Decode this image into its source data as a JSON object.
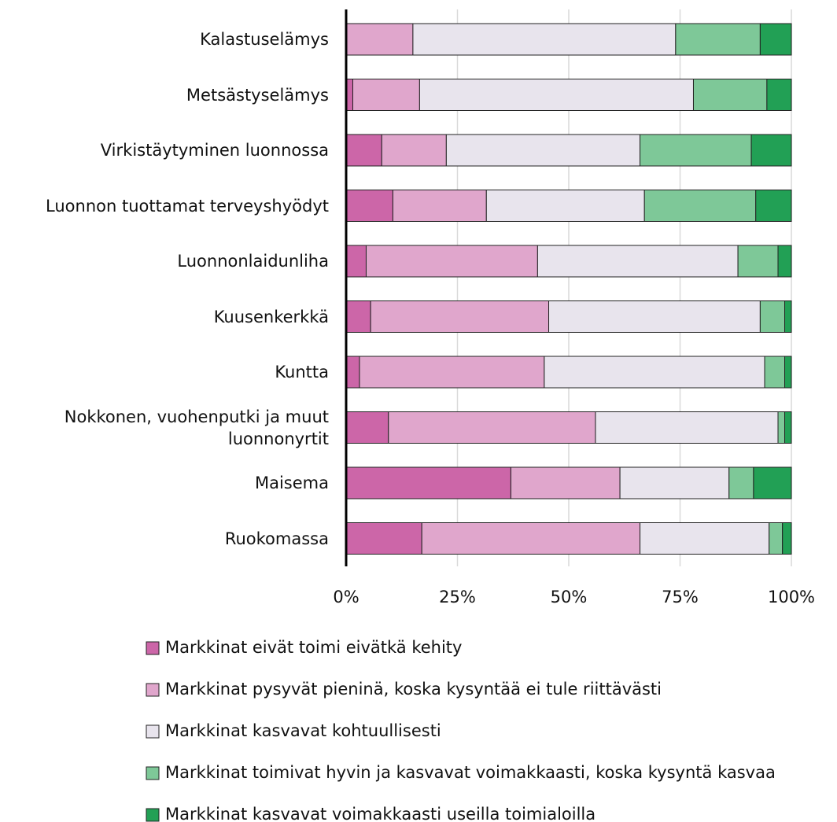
{
  "chart_data": {
    "type": "stacked-barh",
    "categories": [
      "Kalastuselämys",
      "Metsästyselämys",
      "Virkistäytyminen luonnossa",
      "Luonnon tuottamat terveyshyödyt",
      "Luonnonlaidunliha",
      "Kuusenkerkkä",
      "Kuntta",
      "Nokkonen, vuohenputki ja muut luonnonyrtit",
      "Maisema",
      "Ruokomassa"
    ],
    "series": [
      {
        "name": "Markkinat eivät toimi eivätkä kehity",
        "color": "#cc66a8",
        "values": [
          0,
          1.5,
          8,
          10.5,
          4.5,
          5.5,
          3,
          9.5,
          37,
          17
        ]
      },
      {
        "name": "Markkinat pysyvät pieninä, koska kysyntää ei tule riittävästi",
        "color": "#e0a6cc",
        "values": [
          15,
          15,
          14.5,
          21,
          38.5,
          40,
          41.5,
          46.5,
          24.5,
          49
        ]
      },
      {
        "name": "Markkinat kasvavat kohtuullisesti",
        "color": "#e8e4ed",
        "values": [
          59,
          61.5,
          43.5,
          35.5,
          45,
          47.5,
          49.5,
          41,
          24.5,
          29
        ]
      },
      {
        "name": "Markkinat toimivat hyvin ja kasvavat voimakkaasti, koska kysyntä kasvaa",
        "color": "#7ec898",
        "values": [
          19,
          16.5,
          25,
          25,
          9,
          5.5,
          4.5,
          1.5,
          5.5,
          3
        ]
      },
      {
        "name": "Markkinat kasvavat voimakkaasti useilla toimialoilla",
        "color": "#22a055",
        "values": [
          7,
          5.5,
          9,
          8,
          3,
          1.5,
          1.5,
          1.5,
          8.5,
          2
        ]
      }
    ],
    "xlim": [
      0,
      100
    ],
    "xticks": [
      {
        "value": 0,
        "label": "0%"
      },
      {
        "value": 25,
        "label": "25%"
      },
      {
        "value": 50,
        "label": "50%"
      },
      {
        "value": 75,
        "label": "75%"
      },
      {
        "value": 100,
        "label": "100%"
      }
    ],
    "grid": true
  }
}
